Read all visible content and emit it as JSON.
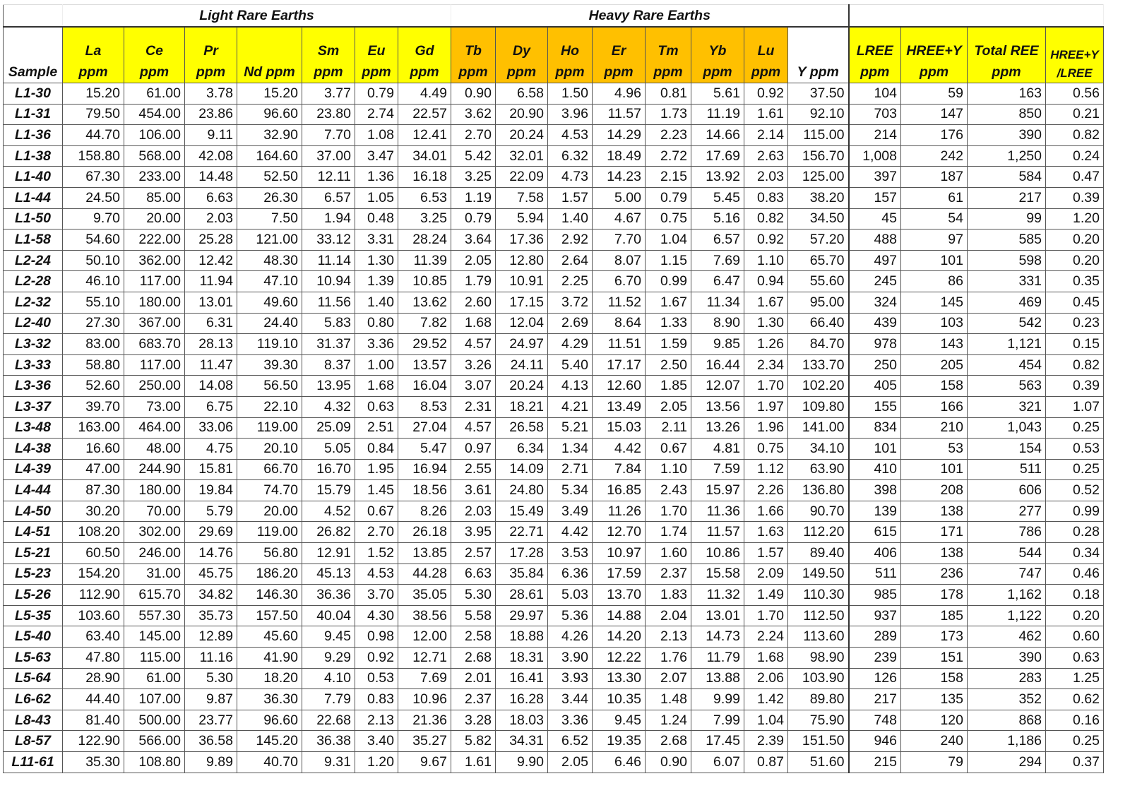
{
  "groups": {
    "light": "Light Rare Earths",
    "heavy": "Heavy Rare Earths"
  },
  "colors": {
    "light_header": "#ffff00",
    "heavy_header": "#ffc000",
    "summary_header": "#ffff00"
  },
  "headers": [
    [
      "",
      "Sample"
    ],
    [
      "La",
      "ppm"
    ],
    [
      "Ce",
      "ppm"
    ],
    [
      "Pr",
      "ppm"
    ],
    [
      "",
      "Nd ppm"
    ],
    [
      "Sm",
      "ppm"
    ],
    [
      "Eu",
      "ppm"
    ],
    [
      "Gd",
      "ppm"
    ],
    [
      "Tb",
      "ppm"
    ],
    [
      "Dy",
      "ppm"
    ],
    [
      "Ho",
      "ppm"
    ],
    [
      "Er",
      "ppm"
    ],
    [
      "Tm",
      "ppm"
    ],
    [
      "Yb",
      "ppm"
    ],
    [
      "Lu",
      "ppm"
    ],
    [
      "",
      "Y ppm"
    ],
    [
      "LREE",
      "ppm"
    ],
    [
      "HREE+Y",
      "ppm"
    ],
    [
      "Total REE",
      "ppm"
    ],
    [
      "HREE+Y",
      "/LREE"
    ]
  ],
  "rows": [
    [
      "L1-30",
      "15.20",
      "61.00",
      "3.78",
      "15.20",
      "3.77",
      "0.79",
      "4.49",
      "0.90",
      "6.58",
      "1.50",
      "4.96",
      "0.81",
      "5.61",
      "0.92",
      "37.50",
      "104",
      "59",
      "163",
      "0.56"
    ],
    [
      "L1-31",
      "79.50",
      "454.00",
      "23.86",
      "96.60",
      "23.80",
      "2.74",
      "22.57",
      "3.62",
      "20.90",
      "3.96",
      "11.57",
      "1.73",
      "11.19",
      "1.61",
      "92.10",
      "703",
      "147",
      "850",
      "0.21"
    ],
    [
      "L1-36",
      "44.70",
      "106.00",
      "9.11",
      "32.90",
      "7.70",
      "1.08",
      "12.41",
      "2.70",
      "20.24",
      "4.53",
      "14.29",
      "2.23",
      "14.66",
      "2.14",
      "115.00",
      "214",
      "176",
      "390",
      "0.82"
    ],
    [
      "L1-38",
      "158.80",
      "568.00",
      "42.08",
      "164.60",
      "37.00",
      "3.47",
      "34.01",
      "5.42",
      "32.01",
      "6.32",
      "18.49",
      "2.72",
      "17.69",
      "2.63",
      "156.70",
      "1,008",
      "242",
      "1,250",
      "0.24"
    ],
    [
      "L1-40",
      "67.30",
      "233.00",
      "14.48",
      "52.50",
      "12.11",
      "1.36",
      "16.18",
      "3.25",
      "22.09",
      "4.73",
      "14.23",
      "2.15",
      "13.92",
      "2.03",
      "125.00",
      "397",
      "187",
      "584",
      "0.47"
    ],
    [
      "L1-44",
      "24.50",
      "85.00",
      "6.63",
      "26.30",
      "6.57",
      "1.05",
      "6.53",
      "1.19",
      "7.58",
      "1.57",
      "5.00",
      "0.79",
      "5.45",
      "0.83",
      "38.20",
      "157",
      "61",
      "217",
      "0.39"
    ],
    [
      "L1-50",
      "9.70",
      "20.00",
      "2.03",
      "7.50",
      "1.94",
      "0.48",
      "3.25",
      "0.79",
      "5.94",
      "1.40",
      "4.67",
      "0.75",
      "5.16",
      "0.82",
      "34.50",
      "45",
      "54",
      "99",
      "1.20"
    ],
    [
      "L1-58",
      "54.60",
      "222.00",
      "25.28",
      "121.00",
      "33.12",
      "3.31",
      "28.24",
      "3.64",
      "17.36",
      "2.92",
      "7.70",
      "1.04",
      "6.57",
      "0.92",
      "57.20",
      "488",
      "97",
      "585",
      "0.20"
    ],
    [
      "L2-24",
      "50.10",
      "362.00",
      "12.42",
      "48.30",
      "11.14",
      "1.30",
      "11.39",
      "2.05",
      "12.80",
      "2.64",
      "8.07",
      "1.15",
      "7.69",
      "1.10",
      "65.70",
      "497",
      "101",
      "598",
      "0.20"
    ],
    [
      "L2-28",
      "46.10",
      "117.00",
      "11.94",
      "47.10",
      "10.94",
      "1.39",
      "10.85",
      "1.79",
      "10.91",
      "2.25",
      "6.70",
      "0.99",
      "6.47",
      "0.94",
      "55.60",
      "245",
      "86",
      "331",
      "0.35"
    ],
    [
      "L2-32",
      "55.10",
      "180.00",
      "13.01",
      "49.60",
      "11.56",
      "1.40",
      "13.62",
      "2.60",
      "17.15",
      "3.72",
      "11.52",
      "1.67",
      "11.34",
      "1.67",
      "95.00",
      "324",
      "145",
      "469",
      "0.45"
    ],
    [
      "L2-40",
      "27.30",
      "367.00",
      "6.31",
      "24.40",
      "5.83",
      "0.80",
      "7.82",
      "1.68",
      "12.04",
      "2.69",
      "8.64",
      "1.33",
      "8.90",
      "1.30",
      "66.40",
      "439",
      "103",
      "542",
      "0.23"
    ],
    [
      "L3-32",
      "83.00",
      "683.70",
      "28.13",
      "119.10",
      "31.37",
      "3.36",
      "29.52",
      "4.57",
      "24.97",
      "4.29",
      "11.51",
      "1.59",
      "9.85",
      "1.26",
      "84.70",
      "978",
      "143",
      "1,121",
      "0.15"
    ],
    [
      "L3-33",
      "58.80",
      "117.00",
      "11.47",
      "39.30",
      "8.37",
      "1.00",
      "13.57",
      "3.26",
      "24.11",
      "5.40",
      "17.17",
      "2.50",
      "16.44",
      "2.34",
      "133.70",
      "250",
      "205",
      "454",
      "0.82"
    ],
    [
      "L3-36",
      "52.60",
      "250.00",
      "14.08",
      "56.50",
      "13.95",
      "1.68",
      "16.04",
      "3.07",
      "20.24",
      "4.13",
      "12.60",
      "1.85",
      "12.07",
      "1.70",
      "102.20",
      "405",
      "158",
      "563",
      "0.39"
    ],
    [
      "L3-37",
      "39.70",
      "73.00",
      "6.75",
      "22.10",
      "4.32",
      "0.63",
      "8.53",
      "2.31",
      "18.21",
      "4.21",
      "13.49",
      "2.05",
      "13.56",
      "1.97",
      "109.80",
      "155",
      "166",
      "321",
      "1.07"
    ],
    [
      "L3-48",
      "163.00",
      "464.00",
      "33.06",
      "119.00",
      "25.09",
      "2.51",
      "27.04",
      "4.57",
      "26.58",
      "5.21",
      "15.03",
      "2.11",
      "13.26",
      "1.96",
      "141.00",
      "834",
      "210",
      "1,043",
      "0.25"
    ],
    [
      "L4-38",
      "16.60",
      "48.00",
      "4.75",
      "20.10",
      "5.05",
      "0.84",
      "5.47",
      "0.97",
      "6.34",
      "1.34",
      "4.42",
      "0.67",
      "4.81",
      "0.75",
      "34.10",
      "101",
      "53",
      "154",
      "0.53"
    ],
    [
      "L4-39",
      "47.00",
      "244.90",
      "15.81",
      "66.70",
      "16.70",
      "1.95",
      "16.94",
      "2.55",
      "14.09",
      "2.71",
      "7.84",
      "1.10",
      "7.59",
      "1.12",
      "63.90",
      "410",
      "101",
      "511",
      "0.25"
    ],
    [
      "L4-44",
      "87.30",
      "180.00",
      "19.84",
      "74.70",
      "15.79",
      "1.45",
      "18.56",
      "3.61",
      "24.80",
      "5.34",
      "16.85",
      "2.43",
      "15.97",
      "2.26",
      "136.80",
      "398",
      "208",
      "606",
      "0.52"
    ],
    [
      "L4-50",
      "30.20",
      "70.00",
      "5.79",
      "20.00",
      "4.52",
      "0.67",
      "8.26",
      "2.03",
      "15.49",
      "3.49",
      "11.26",
      "1.70",
      "11.36",
      "1.66",
      "90.70",
      "139",
      "138",
      "277",
      "0.99"
    ],
    [
      "L4-51",
      "108.20",
      "302.00",
      "29.69",
      "119.00",
      "26.82",
      "2.70",
      "26.18",
      "3.95",
      "22.71",
      "4.42",
      "12.70",
      "1.74",
      "11.57",
      "1.63",
      "112.20",
      "615",
      "171",
      "786",
      "0.28"
    ],
    [
      "L5-21",
      "60.50",
      "246.00",
      "14.76",
      "56.80",
      "12.91",
      "1.52",
      "13.85",
      "2.57",
      "17.28",
      "3.53",
      "10.97",
      "1.60",
      "10.86",
      "1.57",
      "89.40",
      "406",
      "138",
      "544",
      "0.34"
    ],
    [
      "L5-23",
      "154.20",
      "31.00",
      "45.75",
      "186.20",
      "45.13",
      "4.53",
      "44.28",
      "6.63",
      "35.84",
      "6.36",
      "17.59",
      "2.37",
      "15.58",
      "2.09",
      "149.50",
      "511",
      "236",
      "747",
      "0.46"
    ],
    [
      "L5-26",
      "112.90",
      "615.70",
      "34.82",
      "146.30",
      "36.36",
      "3.70",
      "35.05",
      "5.30",
      "28.61",
      "5.03",
      "13.70",
      "1.83",
      "11.32",
      "1.49",
      "110.30",
      "985",
      "178",
      "1,162",
      "0.18"
    ],
    [
      "L5-35",
      "103.60",
      "557.30",
      "35.73",
      "157.50",
      "40.04",
      "4.30",
      "38.56",
      "5.58",
      "29.97",
      "5.36",
      "14.88",
      "2.04",
      "13.01",
      "1.70",
      "112.50",
      "937",
      "185",
      "1,122",
      "0.20"
    ],
    [
      "L5-40",
      "63.40",
      "145.00",
      "12.89",
      "45.60",
      "9.45",
      "0.98",
      "12.00",
      "2.58",
      "18.88",
      "4.26",
      "14.20",
      "2.13",
      "14.73",
      "2.24",
      "113.60",
      "289",
      "173",
      "462",
      "0.60"
    ],
    [
      "L5-63",
      "47.80",
      "115.00",
      "11.16",
      "41.90",
      "9.29",
      "0.92",
      "12.71",
      "2.68",
      "18.31",
      "3.90",
      "12.22",
      "1.76",
      "11.79",
      "1.68",
      "98.90",
      "239",
      "151",
      "390",
      "0.63"
    ],
    [
      "L5-64",
      "28.90",
      "61.00",
      "5.30",
      "18.20",
      "4.10",
      "0.53",
      "7.69",
      "2.01",
      "16.41",
      "3.93",
      "13.30",
      "2.07",
      "13.88",
      "2.06",
      "103.90",
      "126",
      "158",
      "283",
      "1.25"
    ],
    [
      "L6-62",
      "44.40",
      "107.00",
      "9.87",
      "36.30",
      "7.79",
      "0.83",
      "10.96",
      "2.37",
      "16.28",
      "3.44",
      "10.35",
      "1.48",
      "9.99",
      "1.42",
      "89.80",
      "217",
      "135",
      "352",
      "0.62"
    ],
    [
      "L8-43",
      "81.40",
      "500.00",
      "23.77",
      "96.60",
      "22.68",
      "2.13",
      "21.36",
      "3.28",
      "18.03",
      "3.36",
      "9.45",
      "1.24",
      "7.99",
      "1.04",
      "75.90",
      "748",
      "120",
      "868",
      "0.16"
    ],
    [
      "L8-57",
      "122.90",
      "566.00",
      "36.58",
      "145.20",
      "36.38",
      "3.40",
      "35.27",
      "5.82",
      "34.31",
      "6.52",
      "19.35",
      "2.68",
      "17.45",
      "2.39",
      "151.50",
      "946",
      "240",
      "1,186",
      "0.25"
    ],
    [
      "L11-61",
      "35.30",
      "108.80",
      "9.89",
      "40.70",
      "9.31",
      "1.20",
      "9.67",
      "1.61",
      "9.90",
      "2.05",
      "6.46",
      "0.90",
      "6.07",
      "0.87",
      "51.60",
      "215",
      "79",
      "294",
      "0.37"
    ]
  ]
}
